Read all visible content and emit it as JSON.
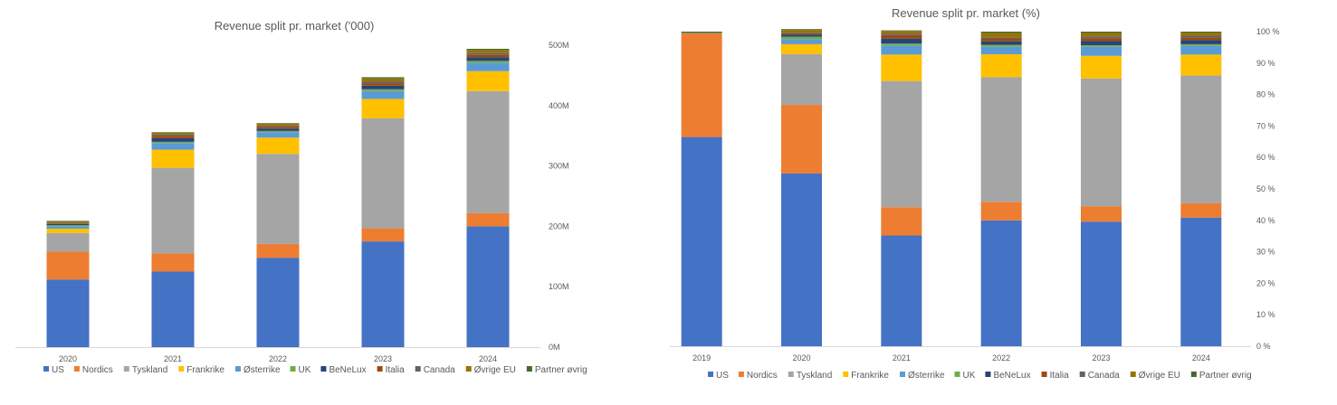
{
  "colors": {
    "US": "#4472C4",
    "Nordics": "#ED7D31",
    "Tyskland": "#A5A5A5",
    "Frankrike": "#FFC000",
    "Østerrike": "#5B9BD5",
    "UK": "#70AD47",
    "BeNeLux": "#264478",
    "Italia": "#9E480E",
    "Canada": "#636363",
    "Øvrige EU": "#997300",
    "Partner øvrig": "#43682B"
  },
  "chart_data": [
    {
      "type": "bar",
      "stacked": true,
      "title": "Revenue split pr. market ('000)",
      "xlabel": "",
      "ylabel": "",
      "categories": [
        "2020",
        "2021",
        "2022",
        "2023",
        "2024"
      ],
      "ylim": [
        0,
        500
      ],
      "yticks": [
        "0M",
        "100M",
        "200M",
        "300M",
        "400M",
        "500M"
      ],
      "y_axis_side": "right",
      "legend_position": "bottom",
      "series": [
        {
          "name": "US",
          "values": [
            112,
            125,
            148,
            175,
            200
          ]
        },
        {
          "name": "Nordics",
          "values": [
            46,
            30,
            23,
            22,
            22
          ]
        },
        {
          "name": "Tyskland",
          "values": [
            31,
            142,
            149,
            182,
            202
          ]
        },
        {
          "name": "Frankrike",
          "values": [
            7,
            30,
            27,
            32,
            33
          ]
        },
        {
          "name": "Østerrike",
          "values": [
            4,
            11,
            9,
            13,
            14
          ]
        },
        {
          "name": "UK",
          "values": [
            2,
            2,
            2,
            3,
            3
          ]
        },
        {
          "name": "BeNeLux",
          "values": [
            2,
            6,
            4,
            6,
            6
          ]
        },
        {
          "name": "Italia",
          "values": [
            1,
            4,
            3,
            4,
            4
          ]
        },
        {
          "name": "Canada",
          "values": [
            1,
            2,
            2,
            3,
            3
          ]
        },
        {
          "name": "Øvrige EU",
          "values": [
            2,
            3,
            3,
            5,
            5
          ]
        },
        {
          "name": "Partner øvrig",
          "values": [
            1,
            1,
            1,
            2,
            2
          ]
        }
      ]
    },
    {
      "type": "bar",
      "stacked": true,
      "title": "Revenue split pr. market (%)",
      "xlabel": "",
      "ylabel": "",
      "categories": [
        "2019",
        "2020",
        "2021",
        "2022",
        "2023",
        "2024"
      ],
      "ylim": [
        0,
        100
      ],
      "yticks": [
        "0 %",
        "10 %",
        "20 %",
        "30 %",
        "40 %",
        "50 %",
        "60 %",
        "70 %",
        "80 %",
        "90 %",
        "100 %"
      ],
      "y_axis_side": "right",
      "legend_position": "bottom",
      "series": [
        {
          "name": "US",
          "values": [
            66.5,
            54.9,
            35.2,
            40.0,
            39.6,
            40.9
          ]
        },
        {
          "name": "Nordics",
          "values": [
            33.0,
            21.8,
            9.0,
            5.9,
            4.9,
            4.6
          ]
        },
        {
          "name": "Tyskland",
          "values": [
            0.1,
            16.2,
            40.1,
            39.6,
            40.6,
            40.6
          ]
        },
        {
          "name": "Frankrike",
          "values": [
            0,
            3.1,
            8.4,
            7.3,
            7.2,
            6.6
          ]
        },
        {
          "name": "Østerrike",
          "values": [
            0,
            1.6,
            2.9,
            2.4,
            2.9,
            2.8
          ]
        },
        {
          "name": "UK",
          "values": [
            0,
            0.8,
            0.6,
            0.6,
            0.5,
            0.5
          ]
        },
        {
          "name": "BeNeLux",
          "values": [
            0,
            0.7,
            1.6,
            1.1,
            1.3,
            1.3
          ]
        },
        {
          "name": "Italia",
          "values": [
            0,
            0.4,
            1.1,
            0.8,
            0.9,
            0.8
          ]
        },
        {
          "name": "Canada",
          "values": [
            0,
            0.2,
            0.5,
            0.5,
            0.6,
            0.6
          ]
        },
        {
          "name": "Øvrige EU",
          "values": [
            0,
            0.8,
            0.8,
            1.4,
            1.1,
            1.0
          ]
        },
        {
          "name": "Partner øvrig",
          "values": [
            0.4,
            0.3,
            0.2,
            0.4,
            0.4,
            0.3
          ]
        }
      ]
    }
  ]
}
